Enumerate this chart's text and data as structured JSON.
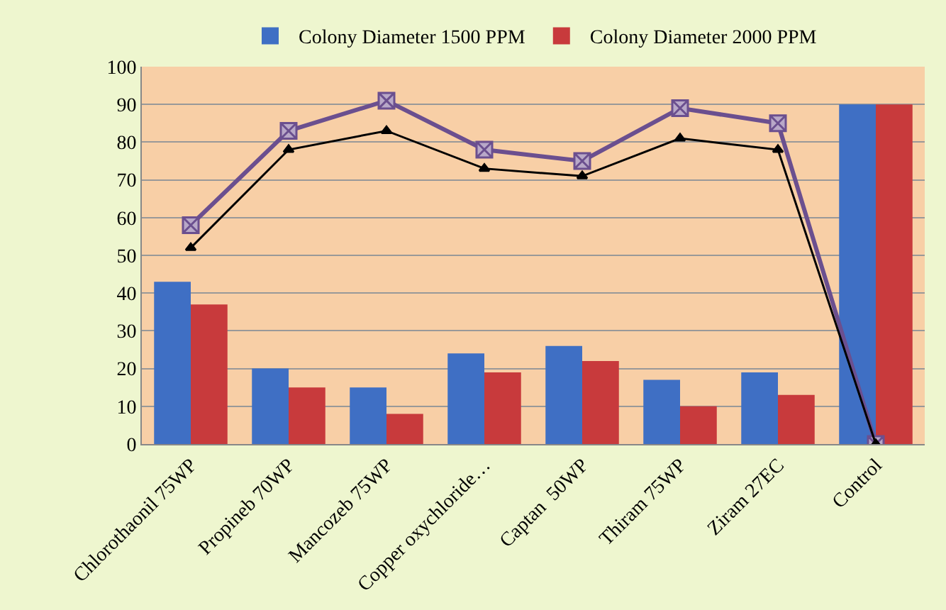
{
  "chart_data": {
    "type": "bar",
    "categories": [
      "Chlorothaonil 75WP",
      "Propineb 70WP",
      "Mancozeb 75WP",
      "Copper oxychloride…",
      "Captan  50WP",
      "Thiram 75WP",
      "Ziram 27EC",
      "Control"
    ],
    "series": [
      {
        "name": "Colony Diameter 1500 PPM",
        "color": "#3f6fc4",
        "values": [
          43,
          20,
          15,
          24,
          26,
          17,
          19,
          90
        ]
      },
      {
        "name": "Colony Diameter 2000 PPM",
        "color": "#c83a3c",
        "values": [
          37,
          15,
          8,
          19,
          22,
          10,
          13,
          90
        ]
      },
      {
        "type": "line",
        "color": "#6b4f8f",
        "marker": "cross",
        "values": [
          58,
          83,
          91,
          78,
          75,
          89,
          85,
          0
        ]
      },
      {
        "type": "line",
        "color": "#000000",
        "marker": "triangle",
        "values": [
          52,
          78,
          83,
          73,
          71,
          81,
          78,
          0
        ]
      }
    ],
    "ylim": [
      0,
      100
    ],
    "yticks": [
      0,
      10,
      20,
      30,
      40,
      50,
      60,
      70,
      80,
      90,
      100
    ],
    "grid": "y",
    "legend": "top"
  }
}
